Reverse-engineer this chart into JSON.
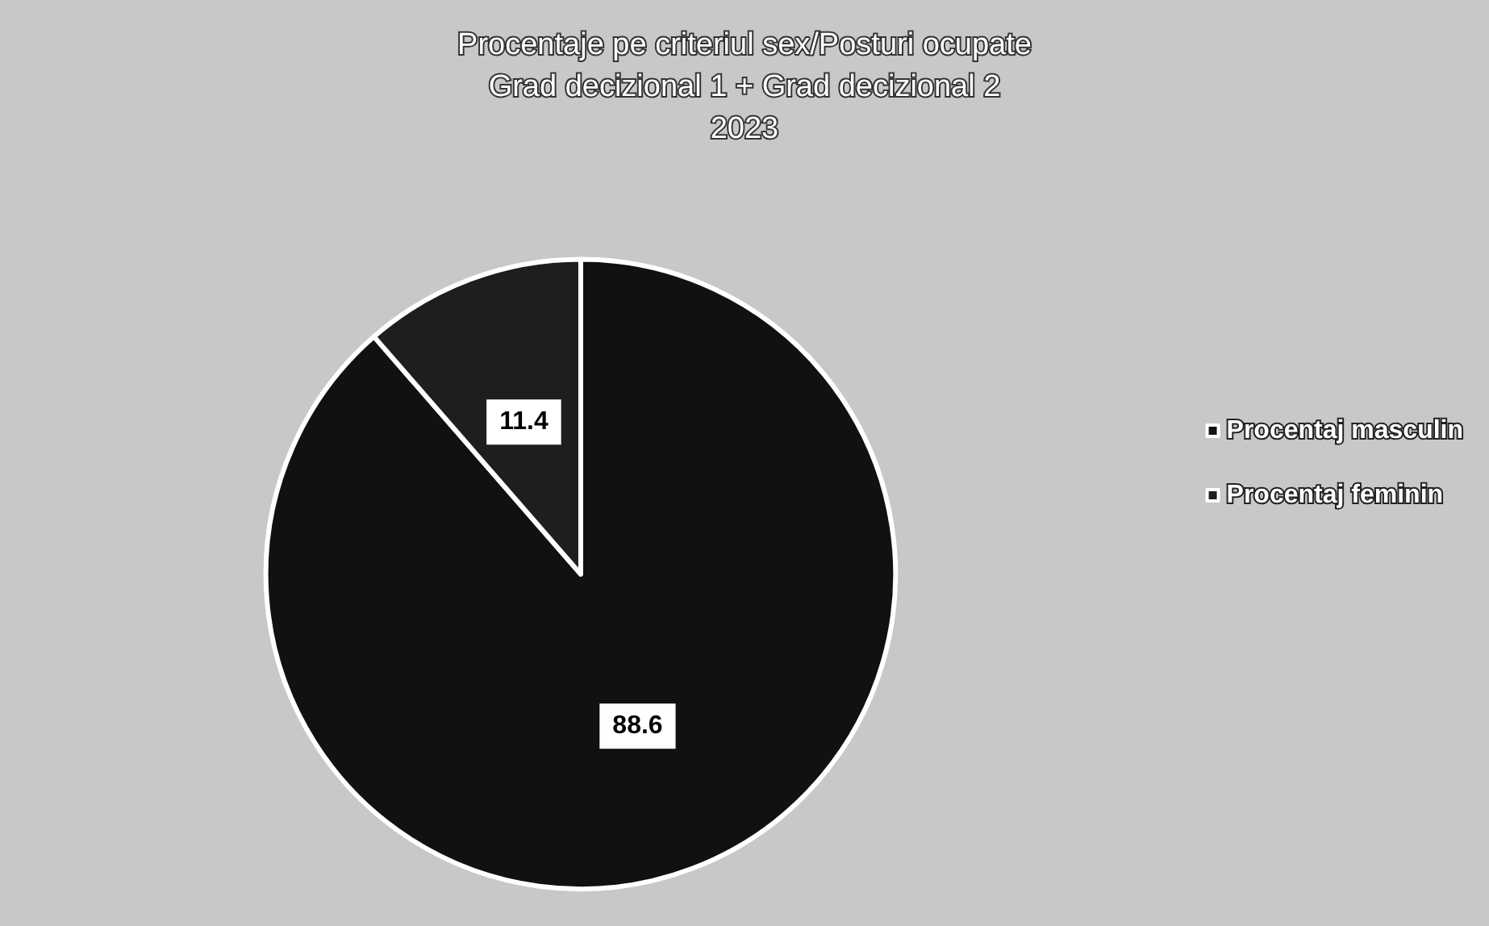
{
  "chart_data": {
    "type": "pie",
    "title": "Procentaje pe criteriul sex/Posturi ocupate\nGrad decizional 1 + Grad decizional 2\n2023",
    "categories": [
      "Procentaj masculin",
      "Procentaj feminin"
    ],
    "values": [
      88.6,
      11.4
    ],
    "colors": [
      "#111111",
      "#1e1e1e"
    ],
    "data_labels": true,
    "legend": "right"
  }
}
